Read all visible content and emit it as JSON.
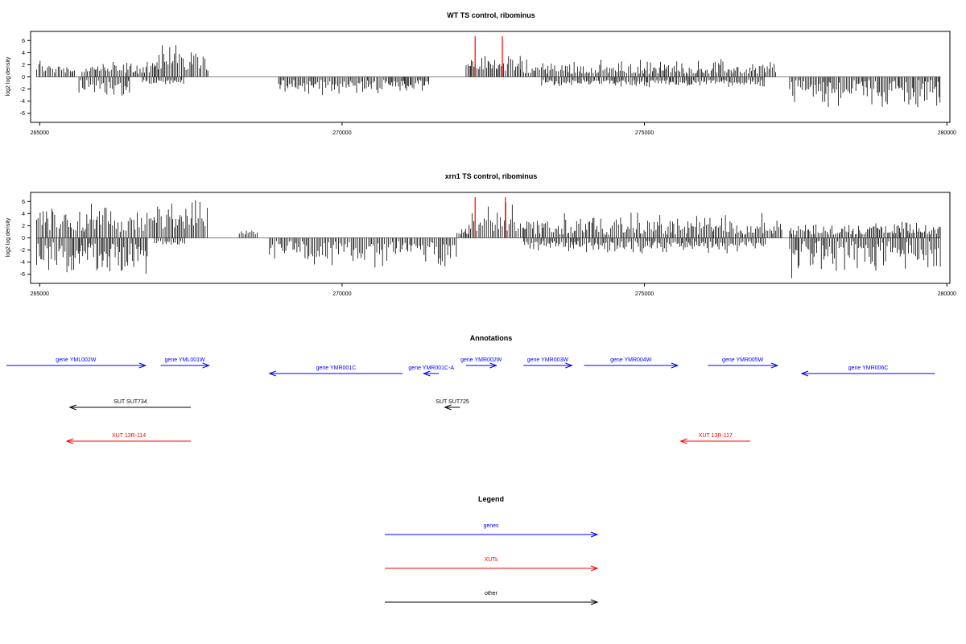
{
  "chart_data": [
    {
      "type": "bar",
      "title": "WT TS control, ribominus",
      "ylabel": "log2 log density",
      "xlim": [
        264850,
        280050
      ],
      "ylim": [
        -7.5,
        7.5
      ],
      "yticks": [
        -6,
        -4,
        -2,
        0,
        2,
        4,
        6
      ],
      "xticks": [
        265000,
        270000,
        275000,
        280000
      ],
      "highlight_color": "#ff0000",
      "segments": [
        {
          "start": 264950,
          "end": 265600,
          "sign": 1,
          "min": 0.5,
          "max": 3.5
        },
        {
          "start": 265650,
          "end": 266500,
          "sign": -1,
          "min": 0.5,
          "max": 3.8
        },
        {
          "start": 265700,
          "end": 266900,
          "sign": 1,
          "min": 0.5,
          "max": 2.8
        },
        {
          "start": 266700,
          "end": 267400,
          "sign": -1,
          "min": 0.5,
          "max": 1.5
        },
        {
          "start": 266900,
          "end": 267800,
          "sign": 1,
          "min": 1.0,
          "max": 6.3
        },
        {
          "start": 268950,
          "end": 271450,
          "sign": -1,
          "min": 0.5,
          "max": 3.2
        },
        {
          "start": 272050,
          "end": 272950,
          "sign": 1,
          "min": 1.0,
          "max": 3.8
        },
        {
          "start": 272950,
          "end": 277200,
          "sign": 1,
          "min": 0.5,
          "max": 3.0
        },
        {
          "start": 273300,
          "end": 277000,
          "sign": -1,
          "min": 0.5,
          "max": 1.8
        },
        {
          "start": 277400,
          "end": 279900,
          "sign": -1,
          "min": 0.5,
          "max": 5.8
        }
      ],
      "highlights": [
        {
          "x": 272200,
          "y": 6.7
        },
        {
          "x": 272650,
          "y": 6.7
        }
      ]
    },
    {
      "type": "bar",
      "title": "xrn1 TS control, ribominus",
      "ylabel": "log2 log density",
      "xlim": [
        264850,
        280050
      ],
      "ylim": [
        -7.5,
        7.5
      ],
      "yticks": [
        -6,
        -4,
        -2,
        0,
        2,
        4,
        6
      ],
      "xticks": [
        265000,
        270000,
        275000,
        280000
      ],
      "highlight_color": "#ff0000",
      "segments": [
        {
          "start": 264950,
          "end": 266900,
          "sign": 1,
          "min": 1.0,
          "max": 6.0
        },
        {
          "start": 264950,
          "end": 266800,
          "sign": -1,
          "min": 0.5,
          "max": 6.5
        },
        {
          "start": 266900,
          "end": 267800,
          "sign": 1,
          "min": 1.5,
          "max": 6.8
        },
        {
          "start": 266900,
          "end": 267400,
          "sign": -1,
          "min": 0.5,
          "max": 1.5
        },
        {
          "start": 268300,
          "end": 268600,
          "sign": 1,
          "min": 0.5,
          "max": 1.5
        },
        {
          "start": 268800,
          "end": 271900,
          "sign": -1,
          "min": 0.5,
          "max": 5.5
        },
        {
          "start": 271900,
          "end": 272100,
          "sign": 1,
          "min": 0.5,
          "max": 2.0
        },
        {
          "start": 272100,
          "end": 273000,
          "sign": 1,
          "min": 1.0,
          "max": 6.5
        },
        {
          "start": 273000,
          "end": 277300,
          "sign": 1,
          "min": 0.5,
          "max": 4.5
        },
        {
          "start": 273000,
          "end": 277000,
          "sign": -1,
          "min": 0.5,
          "max": 2.8
        },
        {
          "start": 277400,
          "end": 279900,
          "sign": -1,
          "min": 0.5,
          "max": 7.0
        },
        {
          "start": 277400,
          "end": 279900,
          "sign": 1,
          "min": 0.5,
          "max": 3.0
        }
      ],
      "highlights": [
        {
          "x": 272200,
          "y": 6.7
        },
        {
          "x": 272700,
          "y": 6.7
        }
      ]
    }
  ],
  "annotations": {
    "title": "Annotations",
    "xlim": [
      264850,
      280050
    ],
    "items": [
      {
        "label": "gene YML002W",
        "start": 264450,
        "end": 266750,
        "strand": "+",
        "row": 0,
        "kind": "gene"
      },
      {
        "label": "gene YML001W",
        "start": 267000,
        "end": 267800,
        "strand": "+",
        "row": 0,
        "kind": "gene"
      },
      {
        "label": "gene YMR001C",
        "start": 268800,
        "end": 271000,
        "strand": "-",
        "row": 1,
        "kind": "gene"
      },
      {
        "label": "gene YMR001C-A",
        "start": 271350,
        "end": 271600,
        "strand": "-",
        "row": 1,
        "kind": "gene"
      },
      {
        "label": "gene YMR002W",
        "start": 272050,
        "end": 272550,
        "strand": "+",
        "row": 0,
        "kind": "gene"
      },
      {
        "label": "gene YMR003W",
        "start": 273000,
        "end": 273800,
        "strand": "+",
        "row": 0,
        "kind": "gene"
      },
      {
        "label": "gene YMR004W",
        "start": 274000,
        "end": 275550,
        "strand": "+",
        "row": 0,
        "kind": "gene"
      },
      {
        "label": "gene YMR005W",
        "start": 276050,
        "end": 277200,
        "strand": "+",
        "row": 0,
        "kind": "gene"
      },
      {
        "label": "gene YMR006C",
        "start": 277600,
        "end": 279800,
        "strand": "-",
        "row": 1,
        "kind": "gene"
      },
      {
        "label": "SUT SUT734",
        "start": 265500,
        "end": 267500,
        "strand": "-",
        "row": 2,
        "kind": "other"
      },
      {
        "label": "SUT SUT725",
        "start": 271700,
        "end": 271950,
        "strand": "-",
        "row": 2,
        "kind": "other"
      },
      {
        "label": "XUT 13R-114",
        "start": 265450,
        "end": 267500,
        "strand": "-",
        "row": 3,
        "kind": "xut"
      },
      {
        "label": "XUT 13R-117",
        "start": 275600,
        "end": 276750,
        "strand": "-",
        "row": 3,
        "kind": "xut"
      }
    ]
  },
  "legend": {
    "title": "Legend",
    "items": [
      {
        "label": "genes",
        "kind": "gene"
      },
      {
        "label": "XUTs",
        "kind": "xut"
      },
      {
        "label": "other",
        "kind": "other"
      }
    ]
  },
  "colors": {
    "gene": "#0000ff",
    "xut": "#ff0000",
    "other": "#000000",
    "bars": "#000000",
    "axis": "#000000"
  }
}
